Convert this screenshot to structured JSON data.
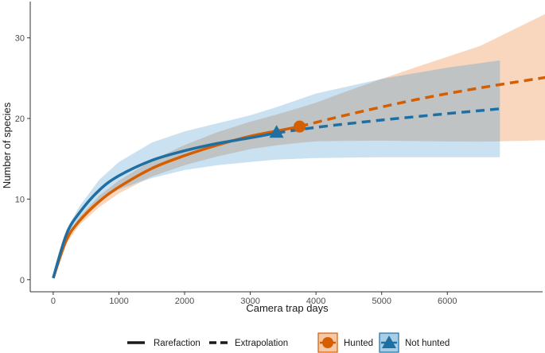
{
  "chart_data": {
    "type": "line",
    "title": "",
    "xlabel": "Camera trap days",
    "ylabel": "Number of species",
    "xlim": [
      -350,
      7450
    ],
    "ylim": [
      -1.5,
      34.5
    ],
    "x_ticks": [
      0,
      1000,
      2000,
      3000,
      4000,
      5000,
      6000
    ],
    "y_ticks": [
      0,
      10,
      20,
      30
    ],
    "grid": false,
    "legend_position": "bottom",
    "line_type_legend": {
      "solid": "Rarefaction",
      "dashed": "Extrapolation"
    },
    "series": [
      {
        "name": "Hunted",
        "color": "#D55E00",
        "band_color": "#F5C9A8",
        "marker": "circle",
        "observed": {
          "x": 3750,
          "y": 19.0
        },
        "rarefaction": {
          "x": [
            0,
            200,
            400,
            700,
            1000,
            1500,
            2000,
            2500,
            3000,
            3500,
            3750
          ],
          "y": [
            0.2,
            4.9,
            7.3,
            9.7,
            11.5,
            13.8,
            15.4,
            16.7,
            17.8,
            18.6,
            19.0
          ]
        },
        "extrapolation": {
          "x": [
            3750,
            4500,
            5500,
            6500,
            7500
          ],
          "y": [
            19.0,
            20.5,
            22.3,
            23.8,
            25.1
          ]
        },
        "ci_lower": [
          0.2,
          4.5,
          6.8,
          9.0,
          10.7,
          12.8,
          14.2,
          15.3,
          16.2,
          16.8,
          17.1,
          17.3,
          17.2,
          17.1,
          17.2,
          17.3
        ],
        "ci_upper": [
          0.2,
          5.3,
          7.8,
          10.4,
          12.3,
          14.8,
          16.7,
          18.3,
          19.6,
          20.7,
          21.2,
          23.5,
          26.3,
          29.0,
          31.0,
          33.0
        ],
        "ci_x": [
          0,
          200,
          400,
          700,
          1000,
          1500,
          2000,
          2500,
          3000,
          3500,
          3750,
          4500,
          5500,
          6500,
          7000,
          7500
        ]
      },
      {
        "name": "Not hunted",
        "color": "#1F6FA3",
        "band_color": "#A7CDE7",
        "marker": "triangle",
        "observed": {
          "x": 3400,
          "y": 18.2
        },
        "rarefaction": {
          "x": [
            0,
            200,
            400,
            700,
            1000,
            1500,
            2000,
            2500,
            3000,
            3400
          ],
          "y": [
            0.2,
            5.6,
            8.3,
            11.1,
            12.9,
            14.8,
            16.0,
            16.9,
            17.6,
            18.2
          ]
        },
        "extrapolation": {
          "x": [
            3400,
            4000,
            5000,
            6000,
            6800
          ],
          "y": [
            18.2,
            18.9,
            19.8,
            20.6,
            21.2
          ]
        },
        "ci_lower": [
          0.2,
          5.0,
          7.5,
          9.8,
          11.2,
          12.6,
          13.6,
          14.2,
          14.6,
          14.9,
          15.1,
          15.2,
          15.2,
          15.2
        ],
        "ci_upper": [
          0.2,
          6.2,
          9.1,
          12.4,
          14.6,
          17.0,
          18.4,
          19.4,
          20.4,
          21.4,
          23.1,
          24.9,
          26.3,
          27.2
        ],
        "ci_x": [
          0,
          200,
          400,
          700,
          1000,
          1500,
          2000,
          2500,
          3000,
          3400,
          4000,
          5000,
          6000,
          6800
        ]
      }
    ]
  },
  "legend": {
    "rarefaction_label": "Rarefaction",
    "extrapolation_label": "Extrapolation",
    "hunted_label": "Hunted",
    "not_hunted_label": "Not hunted"
  }
}
